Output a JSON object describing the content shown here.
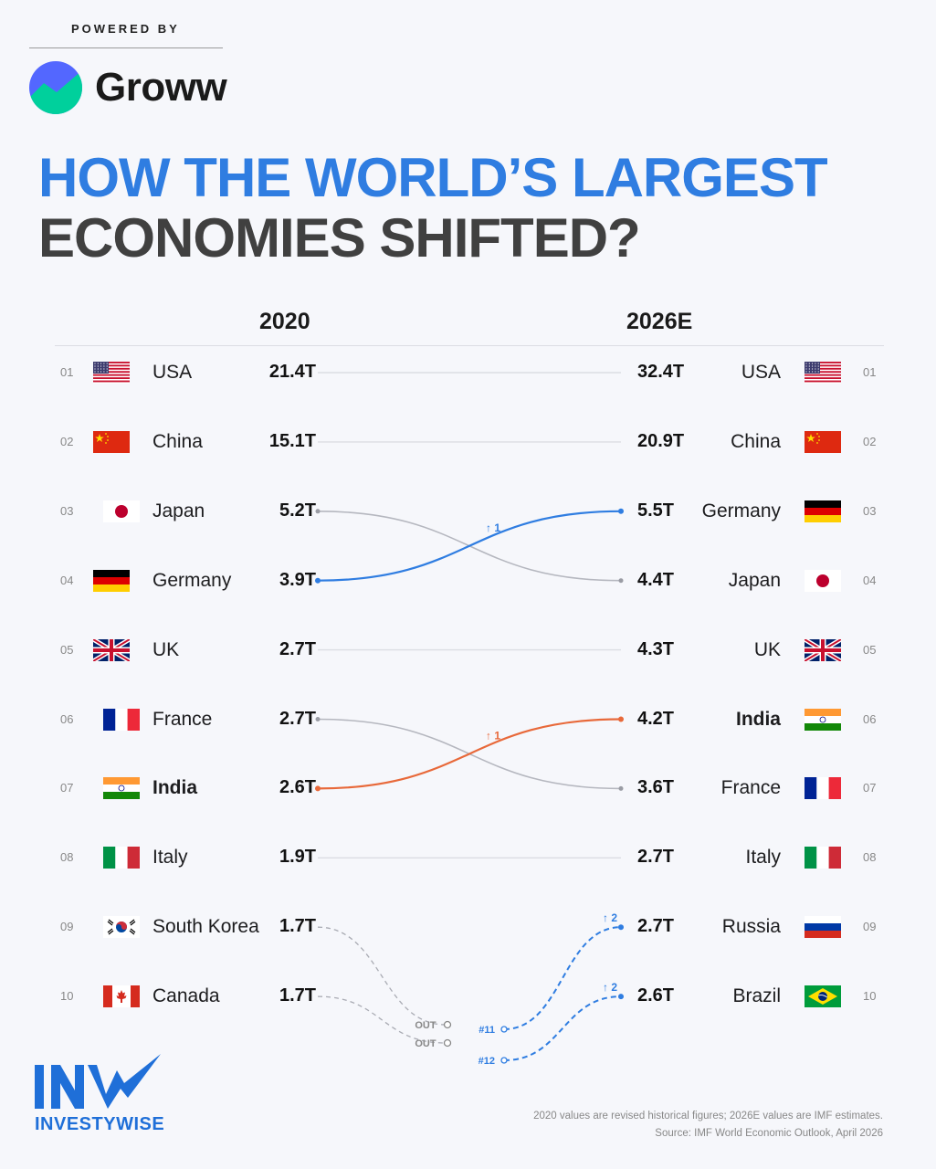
{
  "header": {
    "powered_by": "POWERED BY",
    "brand_name": "Groww",
    "title_line1": "HOW THE WORLD’S LARGEST",
    "title_line2": "ECONOMIES SHIFTED?"
  },
  "colors": {
    "accent_blue": "#2f7de1",
    "accent_orange": "#e8693a",
    "neutral_line": "#b5b7bf",
    "title_dark": "#404040"
  },
  "chart_data": {
    "type": "table",
    "left_column_label": "2020",
    "right_column_label": "2026E",
    "rows_2020": [
      {
        "rank": "01",
        "country": "USA",
        "value": "21.4T",
        "flag": "usa-flag"
      },
      {
        "rank": "02",
        "country": "China",
        "value": "15.1T",
        "flag": "china-flag"
      },
      {
        "rank": "03",
        "country": "Japan",
        "value": "5.2T",
        "flag": "japan-flag"
      },
      {
        "rank": "04",
        "country": "Germany",
        "value": "3.9T",
        "flag": "germany-flag"
      },
      {
        "rank": "05",
        "country": "UK",
        "value": "2.7T",
        "flag": "uk-flag"
      },
      {
        "rank": "06",
        "country": "France",
        "value": "2.7T",
        "flag": "france-flag"
      },
      {
        "rank": "07",
        "country": "India",
        "value": "2.6T",
        "flag": "india-flag"
      },
      {
        "rank": "08",
        "country": "Italy",
        "value": "1.9T",
        "flag": "italy-flag"
      },
      {
        "rank": "09",
        "country": "South Korea",
        "value": "1.7T",
        "flag": "south-korea-flag"
      },
      {
        "rank": "10",
        "country": "Canada",
        "value": "1.7T",
        "flag": "canada-flag"
      }
    ],
    "rows_2026": [
      {
        "rank": "01",
        "country": "USA",
        "value": "32.4T",
        "flag": "usa-flag"
      },
      {
        "rank": "02",
        "country": "China",
        "value": "20.9T",
        "flag": "china-flag"
      },
      {
        "rank": "03",
        "country": "Germany",
        "value": "5.5T",
        "flag": "germany-flag"
      },
      {
        "rank": "04",
        "country": "Japan",
        "value": "4.4T",
        "flag": "japan-flag"
      },
      {
        "rank": "05",
        "country": "UK",
        "value": "4.3T",
        "flag": "uk-flag"
      },
      {
        "rank": "06",
        "country": "India",
        "value": "4.2T",
        "flag": "india-flag"
      },
      {
        "rank": "07",
        "country": "France",
        "value": "3.6T",
        "flag": "france-flag"
      },
      {
        "rank": "08",
        "country": "Italy",
        "value": "2.7T",
        "flag": "italy-flag"
      },
      {
        "rank": "09",
        "country": "Russia",
        "value": "2.7T",
        "flag": "russia-flag"
      },
      {
        "rank": "10",
        "country": "Brazil",
        "value": "2.6T",
        "flag": "brazil-flag"
      }
    ],
    "connections": [
      {
        "from_rank": 1,
        "to_rank": 1,
        "style": "flat"
      },
      {
        "from_rank": 2,
        "to_rank": 2,
        "style": "flat"
      },
      {
        "from_rank": 3,
        "to_rank": 4,
        "style": "down"
      },
      {
        "from_rank": 4,
        "to_rank": 3,
        "style": "up-blue",
        "label": "↑ 1"
      },
      {
        "from_rank": 5,
        "to_rank": 5,
        "style": "flat"
      },
      {
        "from_rank": 6,
        "to_rank": 7,
        "style": "down"
      },
      {
        "from_rank": 7,
        "to_rank": 6,
        "style": "up-orange",
        "label": "↑ 1"
      },
      {
        "from_rank": 8,
        "to_rank": 8,
        "style": "flat"
      },
      {
        "from_rank": 9,
        "to_rank": null,
        "style": "out",
        "label": "OUT"
      },
      {
        "from_rank": 10,
        "to_rank": null,
        "style": "out",
        "label": "OUT"
      },
      {
        "from_rank": 11,
        "to_rank": 9,
        "style": "in",
        "from_label": "#11",
        "label": "↑ 2"
      },
      {
        "from_rank": 12,
        "to_rank": 10,
        "style": "in",
        "from_label": "#12",
        "label": "↑ 2"
      }
    ],
    "bold_country": "India"
  },
  "footer": {
    "note_line1": "2020 values are revised historical figures; 2026E values are IMF estimates.",
    "note_line2": "Source: IMF World Economic Outlook, April 2026",
    "logo_word": "INVESTYWISE"
  }
}
